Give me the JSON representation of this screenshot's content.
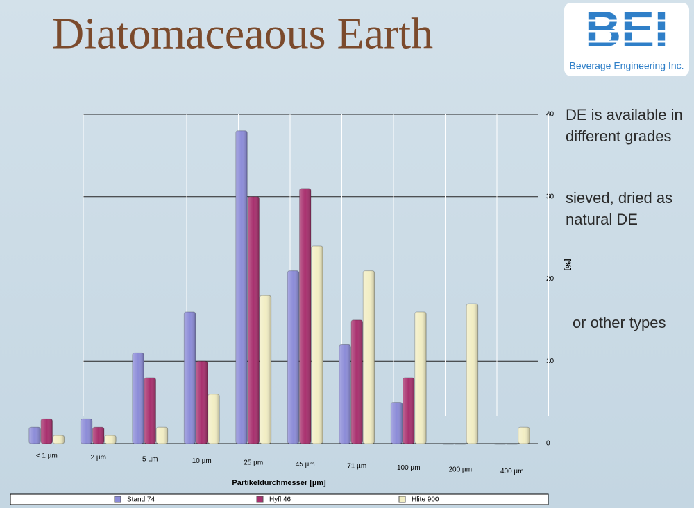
{
  "slide": {
    "title": "Diatomaceaous Earth",
    "logo": "BEI",
    "logo_subtitle": "Beverage Engineering Inc.",
    "notes": [
      "DE is available in different grades",
      "sieved, dried as natural DE",
      "or other types"
    ]
  },
  "chart_data": {
    "type": "bar",
    "x_label": "Partikeldurchmesser [µm]",
    "y_label": "[%]",
    "categories": [
      "< 1 µm",
      "2 µm",
      "5 µm",
      "10 µm",
      "25 µm",
      "45 µm",
      "71 µm",
      "100 µm",
      "200 µm",
      "400 µm"
    ],
    "series": [
      {
        "name": "Stand 74",
        "color": "#8c8cd8",
        "values": [
          2,
          3,
          11,
          16,
          38,
          21,
          12,
          5,
          0,
          0
        ]
      },
      {
        "name": "Hyfl 46",
        "color": "#a8306e",
        "values": [
          3,
          2,
          8,
          10,
          30,
          31,
          15,
          8,
          0,
          0
        ]
      },
      {
        "name": "Hlite 900",
        "color": "#f2eec4",
        "values": [
          1,
          1,
          2,
          6,
          18,
          24,
          21,
          16,
          17,
          2
        ]
      }
    ],
    "ylim": [
      0,
      40
    ],
    "yticks": [
      0,
      10,
      20,
      30,
      40
    ],
    "grid": true,
    "legend": "bottom"
  }
}
